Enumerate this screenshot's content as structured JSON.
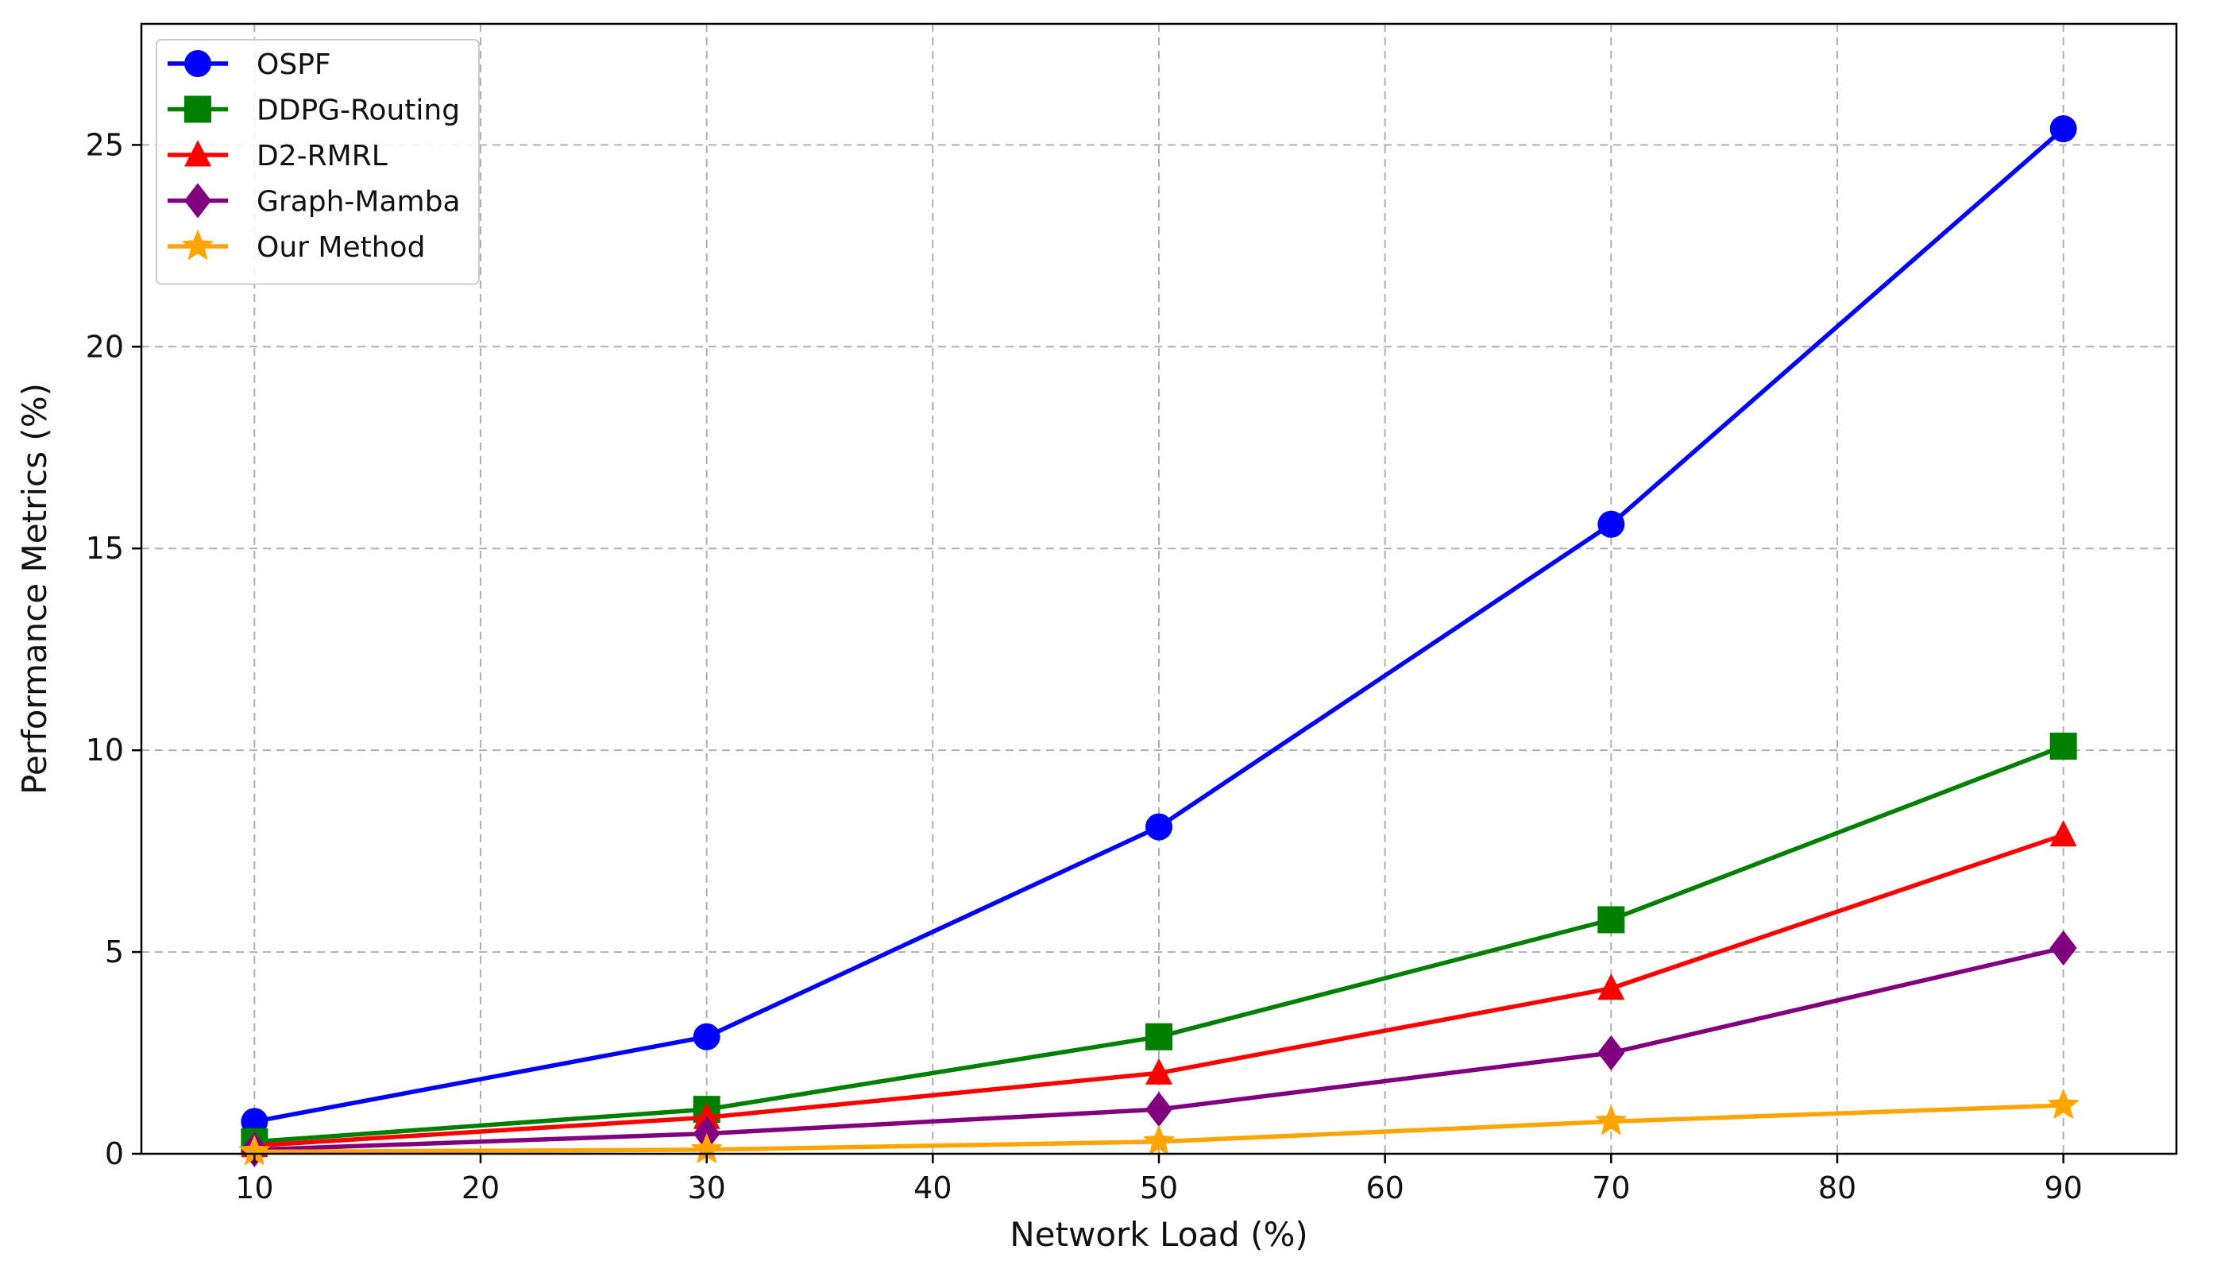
{
  "chart_data": {
    "type": "line",
    "title": "",
    "xlabel": "Network Load (%)",
    "ylabel": "Performance Metrics (%)",
    "x": [
      10,
      30,
      50,
      70,
      90
    ],
    "xlim": [
      5,
      95
    ],
    "ylim": [
      0,
      28
    ],
    "xticks": [
      10,
      20,
      30,
      40,
      50,
      60,
      70,
      80,
      90
    ],
    "yticks": [
      0,
      5,
      10,
      15,
      20,
      25
    ],
    "xtick_labels": [
      "10",
      "20",
      "30",
      "40",
      "50",
      "60",
      "70",
      "80",
      "90"
    ],
    "ytick_labels": [
      "0",
      "5",
      "10",
      "15",
      "20",
      "25"
    ],
    "grid": true,
    "legend_position": "top-left",
    "series": [
      {
        "name": "OSPF",
        "color": "#0000ff",
        "marker": "circle",
        "values": [
          0.8,
          2.9,
          8.1,
          15.6,
          25.4
        ]
      },
      {
        "name": "DDPG-Routing",
        "color": "#008000",
        "marker": "square",
        "values": [
          0.3,
          1.1,
          2.9,
          5.8,
          10.1
        ]
      },
      {
        "name": "D2-RMRL",
        "color": "#ff0000",
        "marker": "triangle",
        "values": [
          0.2,
          0.9,
          2.0,
          4.1,
          7.9
        ]
      },
      {
        "name": "Graph-Mamba",
        "color": "#800080",
        "marker": "diamond",
        "values": [
          0.1,
          0.5,
          1.1,
          2.5,
          5.1
        ]
      },
      {
        "name": "Our Method",
        "color": "#ffa500",
        "marker": "star",
        "values": [
          0.05,
          0.1,
          0.3,
          0.8,
          1.2
        ]
      }
    ]
  }
}
